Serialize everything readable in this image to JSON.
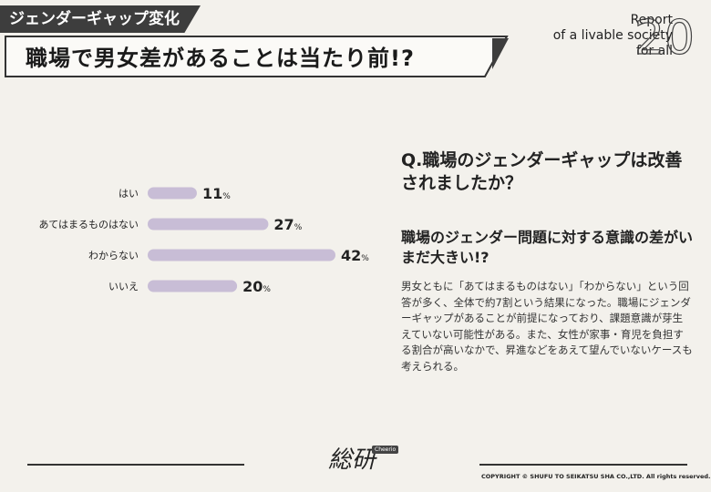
{
  "header": {
    "tag": "ジェンダーギャップ変化",
    "title": "職場で男女差があることは当たり前!?"
  },
  "brand": {
    "report_lines": [
      "Report",
      "of a livable society",
      "for all"
    ],
    "number": "20",
    "logo": "総研",
    "logo_badge": "Cheerio",
    "copyright": "COPYRIGHT © SHUFU TO SEIKATSU SHA CO.,LTD. All rights reserved."
  },
  "question": "Q.職場のジェンダーギャップは改善されましたか？",
  "subhead": "職場のジェンダー問題に対する意識の差がいまだ大きい!?",
  "body": "男女ともに「あてはまるものはない」「わからない」という回答が多く、全体で約7割という結果になった。職場にジェンダーギャップがあることが前提になっており、課題意識が芽生えていない可能性がある。また、女性が家事・育児を負担する割合が高いなかで、昇進などをあえて望んでいないケースも考えられる。",
  "colors": {
    "bar": "#c8bdd6",
    "dark": "#3d3d3d",
    "background": "#f3f1ec"
  },
  "chart_data": {
    "type": "bar",
    "orientation": "horizontal",
    "categories": [
      "はい",
      "あてはまるものはない",
      "わからない",
      "いいえ"
    ],
    "values": [
      11,
      27,
      42,
      20
    ],
    "unit": "%",
    "xlim": [
      0,
      42
    ]
  }
}
